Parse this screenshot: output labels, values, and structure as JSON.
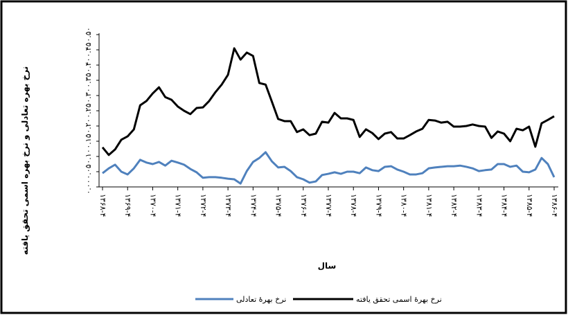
{
  "chart_data": {
    "type": "line",
    "y_label": "نرخ بهره تعادلی و نرخ بهره اسمی تحقق یافته",
    "x_label": "سال",
    "categories": [
      "۱۳۶۸-۴",
      null,
      null,
      null,
      "۱۳۶۹-۴",
      null,
      null,
      null,
      "۱۳۷۰-۴",
      null,
      null,
      null,
      "۱۳۷۱-۴",
      null,
      null,
      null,
      "۱۳۷۲-۴",
      null,
      null,
      null,
      "۱۳۷۳-۴",
      null,
      null,
      null,
      "۱۳۷۴-۴",
      null,
      null,
      null,
      "۱۳۷۵-۴",
      null,
      null,
      null,
      "۱۳۷۶-۴",
      null,
      null,
      null,
      "۱۳۷۷-۴",
      null,
      null,
      null,
      "۱۳۷۸-۴",
      null,
      null,
      null,
      "۱۳۷۹-۴",
      null,
      null,
      null,
      "۱۳۸۰-۴",
      null,
      null,
      null,
      "۱۳۸۱-۴",
      null,
      null,
      null,
      "۱۳۸۲-۴",
      null,
      null,
      null,
      "۱۳۸۳-۴",
      null,
      null,
      null,
      "۱۳۸۴-۴",
      null,
      null,
      null,
      "۱۳۸۵-۴",
      null,
      null,
      null,
      "۱۳۸۶-۴"
    ],
    "series": [
      {
        "name": "نرخ بهرهٔ اسمی تحقق یافته",
        "color": "#000000",
        "values": [
          0.13,
          0.105,
          0.123,
          0.155,
          0.166,
          0.189,
          0.268,
          0.282,
          0.307,
          0.327,
          0.295,
          0.286,
          0.264,
          0.25,
          0.239,
          0.259,
          0.261,
          0.282,
          0.311,
          0.336,
          0.368,
          0.455,
          0.418,
          0.441,
          0.43,
          0.341,
          0.336,
          0.28,
          0.223,
          0.216,
          0.216,
          0.18,
          0.189,
          0.17,
          0.175,
          0.214,
          0.211,
          0.243,
          0.225,
          0.225,
          0.22,
          0.164,
          0.189,
          0.177,
          0.157,
          0.175,
          0.18,
          0.159,
          0.159,
          0.17,
          0.182,
          0.191,
          0.22,
          0.218,
          0.211,
          0.214,
          0.198,
          0.198,
          0.2,
          0.205,
          0.2,
          0.198,
          0.161,
          0.182,
          0.175,
          0.15,
          0.191,
          0.186,
          0.198,
          0.132,
          0.209,
          0.22,
          0.232
        ]
      },
      {
        "name": "نرخ بهرهٔ تعادلی",
        "color": "#4f81bd",
        "values": [
          0.045,
          0.061,
          0.073,
          0.05,
          0.041,
          0.061,
          0.089,
          0.08,
          0.075,
          0.082,
          0.07,
          0.086,
          0.08,
          0.073,
          0.059,
          0.048,
          0.03,
          0.032,
          0.032,
          0.03,
          0.027,
          0.025,
          0.011,
          0.052,
          0.082,
          0.095,
          0.114,
          0.084,
          0.064,
          0.066,
          0.052,
          0.032,
          0.025,
          0.014,
          0.018,
          0.039,
          0.043,
          0.048,
          0.043,
          0.05,
          0.05,
          0.045,
          0.064,
          0.055,
          0.052,
          0.066,
          0.068,
          0.057,
          0.05,
          0.041,
          0.041,
          0.045,
          0.061,
          0.064,
          0.066,
          0.068,
          0.068,
          0.07,
          0.066,
          0.061,
          0.052,
          0.055,
          0.057,
          0.075,
          0.075,
          0.066,
          0.07,
          0.05,
          0.048,
          0.057,
          0.095,
          0.075,
          0.032
        ]
      }
    ],
    "ylim": [
      0,
      0.5
    ],
    "yticks": [
      {
        "value": 0,
        "label": "۰.۰۰"
      },
      {
        "value": 0.05,
        "label": "۰.۰۵"
      },
      {
        "value": 0.1,
        "label": "۰.۱۰"
      },
      {
        "value": 0.15,
        "label": "۰.۱۵"
      },
      {
        "value": 0.2,
        "label": "۰.۲۰"
      },
      {
        "value": 0.25,
        "label": "۰.۲۵"
      },
      {
        "value": 0.3,
        "label": "۰.۳۰"
      },
      {
        "value": 0.35,
        "label": "۰.۳۵"
      },
      {
        "value": 0.4,
        "label": "۰.۴۰"
      },
      {
        "value": 0.45,
        "label": "۰.۴۵"
      },
      {
        "value": 0.5,
        "label": "۰.۵۰"
      }
    ],
    "legend": "bottom"
  }
}
